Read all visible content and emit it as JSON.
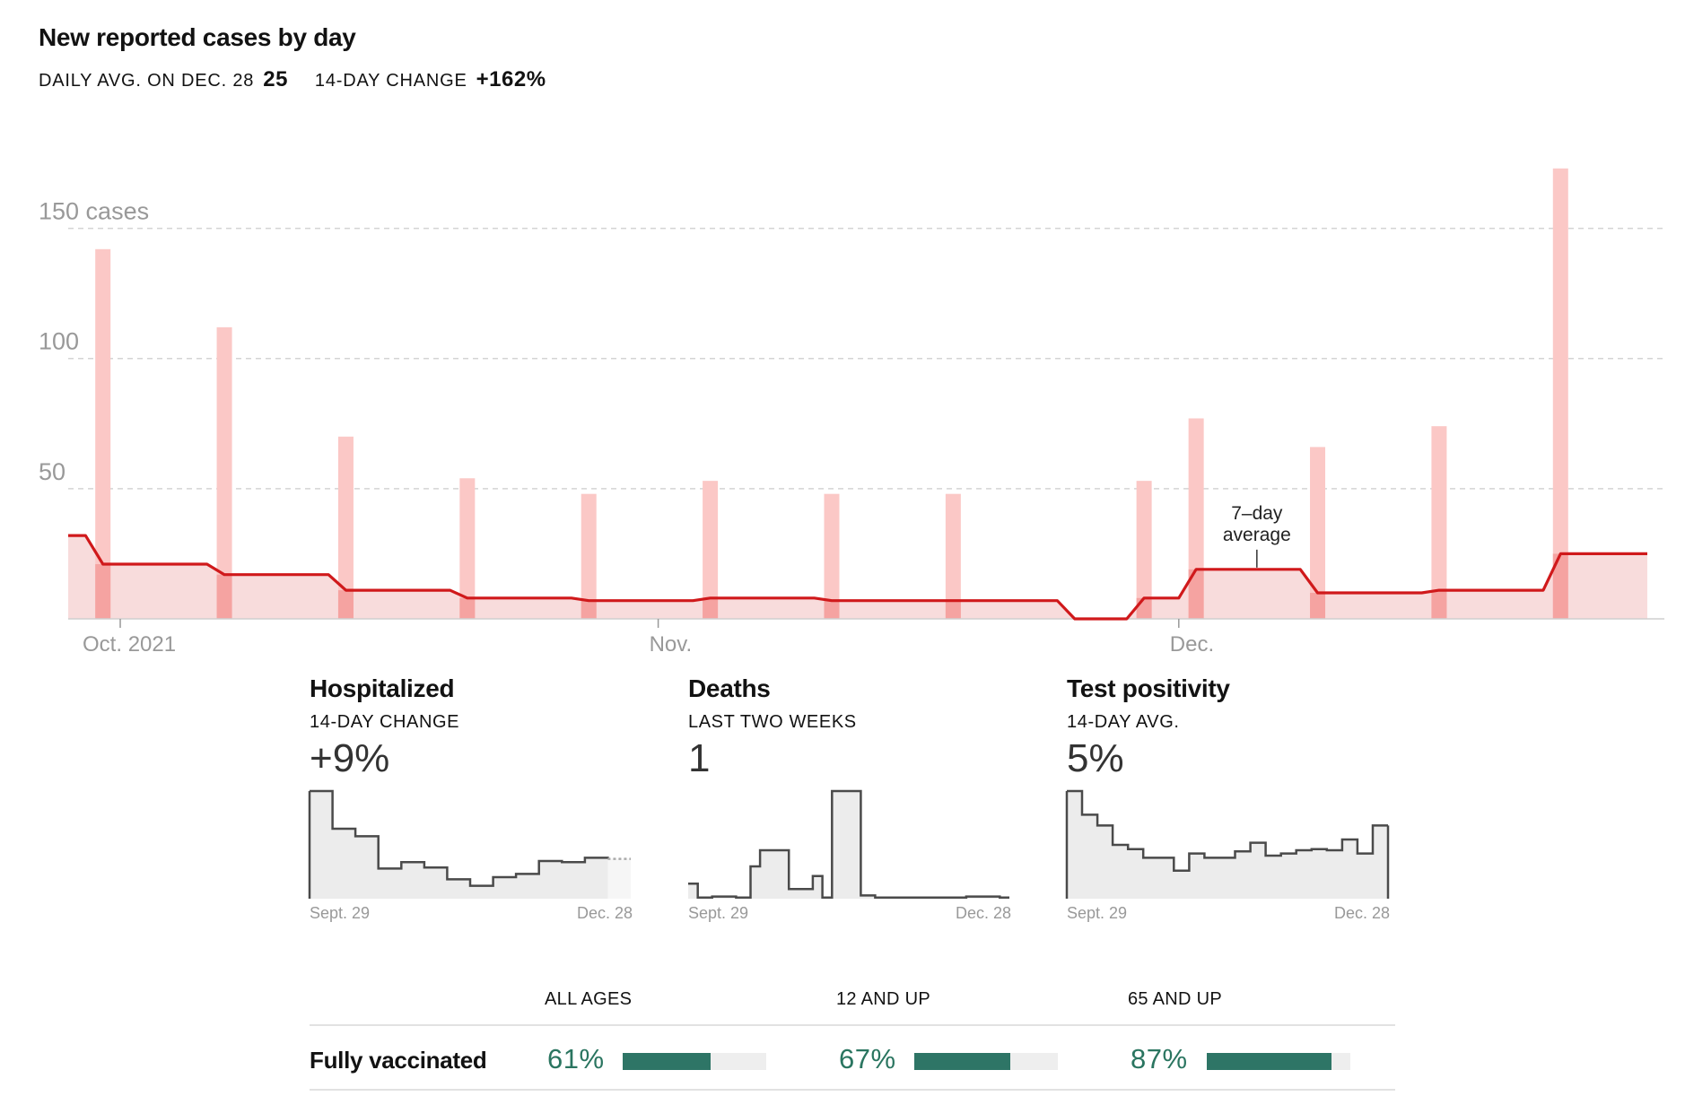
{
  "header": {
    "title": "New reported cases by day",
    "daily_avg_label": "DAILY AVG. ON DEC. 28",
    "daily_avg_value": "25",
    "change_label": "14-DAY CHANGE",
    "change_value": "+162%"
  },
  "colors": {
    "bar": "#fbc8c6",
    "bar_overlap": "#f5a3a1",
    "avg_line": "#d0191b",
    "avg_fill": "#f8dcdc",
    "spark_line": "#4a4a4a",
    "spark_fill": "#ececec",
    "vacc_fill": "#2e7566",
    "vacc_text": "#2a7560"
  },
  "chart_data": [
    {
      "type": "bar",
      "title": "New reported cases by day",
      "y_ticks": [
        {
          "value": 150,
          "label": "150 cases"
        },
        {
          "value": 100,
          "label": "100"
        },
        {
          "value": 50,
          "label": "50"
        }
      ],
      "ylim": [
        0,
        175
      ],
      "x_range": [
        "2021-09-28",
        "2021-12-28"
      ],
      "x_ticks": [
        {
          "date": "2021-10-01",
          "label": "Oct. 2021"
        },
        {
          "date": "2021-11-01",
          "label": "Nov."
        },
        {
          "date": "2021-12-01",
          "label": "Dec."
        }
      ],
      "bars": [
        {
          "date": "2021-09-30",
          "value": 142
        },
        {
          "date": "2021-10-07",
          "value": 112
        },
        {
          "date": "2021-10-14",
          "value": 70
        },
        {
          "date": "2021-10-21",
          "value": 54
        },
        {
          "date": "2021-10-28",
          "value": 48
        },
        {
          "date": "2021-11-04",
          "value": 53
        },
        {
          "date": "2021-11-11",
          "value": 48
        },
        {
          "date": "2021-11-18",
          "value": 48
        },
        {
          "date": "2021-11-29",
          "value": 53
        },
        {
          "date": "2021-12-02",
          "value": 77
        },
        {
          "date": "2021-12-09",
          "value": 66
        },
        {
          "date": "2021-12-16",
          "value": 74
        },
        {
          "date": "2021-12-23",
          "value": 173
        }
      ],
      "series": [
        {
          "values": [
            {
              "date": "2021-09-28",
              "value": 32
            },
            {
              "date": "2021-09-29",
              "value": 32
            },
            {
              "date": "2021-09-30",
              "value": 21
            },
            {
              "date": "2021-10-06",
              "value": 21
            },
            {
              "date": "2021-10-07",
              "value": 17
            },
            {
              "date": "2021-10-13",
              "value": 17
            },
            {
              "date": "2021-10-14",
              "value": 11
            },
            {
              "date": "2021-10-20",
              "value": 11
            },
            {
              "date": "2021-10-21",
              "value": 8
            },
            {
              "date": "2021-10-27",
              "value": 8
            },
            {
              "date": "2021-10-28",
              "value": 7
            },
            {
              "date": "2021-11-03",
              "value": 7
            },
            {
              "date": "2021-11-04",
              "value": 8
            },
            {
              "date": "2021-11-10",
              "value": 8
            },
            {
              "date": "2021-11-11",
              "value": 7
            },
            {
              "date": "2021-11-24",
              "value": 7
            },
            {
              "date": "2021-11-25",
              "value": 0
            },
            {
              "date": "2021-11-28",
              "value": 0
            },
            {
              "date": "2021-11-29",
              "value": 8
            },
            {
              "date": "2021-12-01",
              "value": 8
            },
            {
              "date": "2021-12-02",
              "value": 19
            },
            {
              "date": "2021-12-08",
              "value": 19
            },
            {
              "date": "2021-12-09",
              "value": 10
            },
            {
              "date": "2021-12-15",
              "value": 10
            },
            {
              "date": "2021-12-16",
              "value": 11
            },
            {
              "date": "2021-12-22",
              "value": 11
            },
            {
              "date": "2021-12-23",
              "value": 25
            },
            {
              "date": "2021-12-28",
              "value": 25
            }
          ]
        }
      ],
      "annotation": {
        "line1": "7–day",
        "line2": "average",
        "date": "2021-12-05",
        "value": 19
      }
    },
    {
      "type": "area",
      "title": "Hospitalized",
      "subtitle": "14-DAY CHANGE",
      "headline": "+9%",
      "start_label": "Sept. 29",
      "end_label": "Dec. 28",
      "values": [
        100,
        65,
        58,
        28,
        34,
        29,
        18,
        12,
        20,
        23,
        35,
        34,
        38,
        37
      ],
      "last_faded": true
    },
    {
      "type": "line",
      "title": "Deaths",
      "subtitle": "LAST TWO WEEKS",
      "headline": "1",
      "start_label": "Sept. 29",
      "end_label": "Dec. 28",
      "values": [
        14,
        1,
        2,
        2,
        1,
        30,
        45,
        45,
        9,
        9,
        21,
        1,
        100,
        100,
        3,
        1,
        1,
        1,
        1,
        1,
        1,
        1,
        2,
        2,
        1,
        1
      ],
      "x_weights": [
        2,
        3,
        1,
        4,
        3,
        2,
        1,
        5,
        1,
        4,
        2,
        2,
        5,
        1,
        3,
        3,
        3,
        3,
        3,
        3,
        3,
        1,
        4,
        3,
        1,
        1
      ]
    },
    {
      "type": "area",
      "title": "Test positivity",
      "subtitle": "14-DAY AVG.",
      "headline": "5%",
      "start_label": "Sept. 29",
      "end_label": "Dec. 28",
      "values": [
        100,
        78,
        68,
        50,
        46,
        38,
        38,
        26,
        42,
        38,
        38,
        44,
        52,
        40,
        42,
        45,
        46,
        45,
        55,
        42,
        68
      ]
    }
  ],
  "vaccination": {
    "label": "Fully vaccinated",
    "groups": [
      {
        "header": "ALL AGES",
        "pct_label": "61%",
        "pct": 61
      },
      {
        "header": "12 AND UP",
        "pct_label": "67%",
        "pct": 67
      },
      {
        "header": "65 AND UP",
        "pct_label": "87%",
        "pct": 87
      }
    ]
  }
}
